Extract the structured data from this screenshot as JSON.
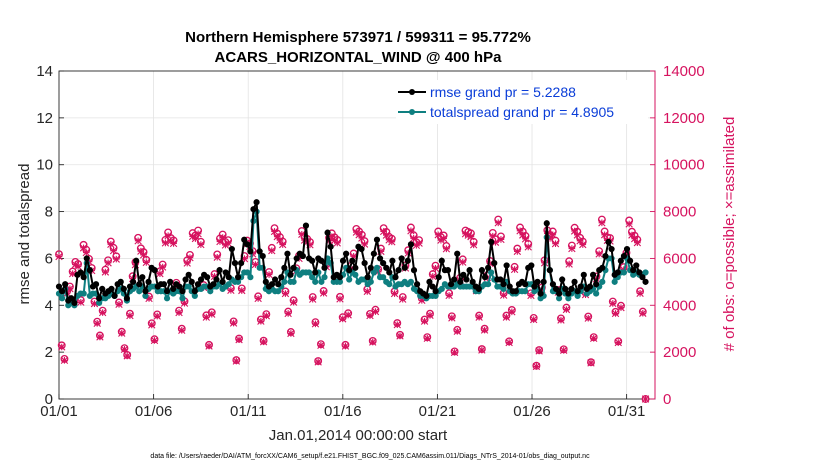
{
  "chart_data": {
    "type": "line",
    "title_line1": "Northern Hemisphere 573971 / 599311 = 95.772%",
    "title_line2": "ACARS_HORIZONTAL_WIND @ 400 hPa",
    "xlabel": "Jan.01,2014 00:00:00 start",
    "ylabel": "rmse and totalspread",
    "y2label": "# of obs: o=possible; ×=assimilated",
    "footnote": "data file: /Users/raeder/DAI/ATM_forcXX/CAM6_setup/f.e21.FHIST_BGC.f09_025.CAM6assim.011/Diags_NTrS_2014-01/obs_diag_output.nc",
    "xlim": [
      0,
      31.5
    ],
    "ylim": [
      0,
      14
    ],
    "y2lim": [
      0,
      14000
    ],
    "xticks": [
      0,
      5,
      10,
      15,
      20,
      25,
      30
    ],
    "xtick_labels": [
      "01/01",
      "01/06",
      "01/11",
      "01/16",
      "01/21",
      "01/26",
      "01/31"
    ],
    "yticks": [
      0,
      2,
      4,
      6,
      8,
      10,
      12,
      14
    ],
    "y2ticks": [
      0,
      2000,
      4000,
      6000,
      8000,
      10000,
      12000,
      14000
    ],
    "legend_position": "top-right",
    "series": [
      {
        "name": "rmse grand pr = 5.2288",
        "color": "#000000",
        "axis": "left",
        "values": [
          4.8,
          4.6,
          4.9,
          4.2,
          4.3,
          4.1,
          5.3,
          5.4,
          5.2,
          6.0,
          5.5,
          4.8,
          4.9,
          4.3,
          4.7,
          4.5,
          4.6,
          4.7,
          4.4,
          4.9,
          5.0,
          4.7,
          4.3,
          4.8,
          5.0,
          5.9,
          4.9,
          5.2,
          4.6,
          5.0,
          5.6,
          5.5,
          4.8,
          4.9,
          4.9,
          4.6,
          5.0,
          4.7,
          4.9,
          4.8,
          4.6,
          5.1,
          5.3,
          5.0,
          4.6,
          4.9,
          5.1,
          5.3,
          5.2,
          4.8,
          4.9,
          5.1,
          5.5,
          5.0,
          5.4,
          5.2,
          6.4,
          5.8,
          5.2,
          5.8,
          6.8,
          6.6,
          6.3,
          8.1,
          8.4,
          6.3,
          6.1,
          5.0,
          4.8,
          4.9,
          5.1,
          4.9,
          5.2,
          5.6,
          6.2,
          5.3,
          5.6,
          6.0,
          6.2,
          6.1,
          7.4,
          6.0,
          5.9,
          5.4,
          6.0,
          5.9,
          5.6,
          7.1,
          6.5,
          5.2,
          5.3,
          5.2,
          5.9,
          6.2,
          5.5,
          5.9,
          5.6,
          6.5,
          6.4,
          5.8,
          5.2,
          5.6,
          6.2,
          6.8,
          6.0,
          5.8,
          5.6,
          5.4,
          5.9,
          5.2,
          5.5,
          6.0,
          5.6,
          5.9,
          6.6,
          5.5,
          4.9,
          4.6,
          4.5,
          4.4,
          5.0,
          4.8,
          4.6,
          5.2,
          5.9,
          5.5,
          5.5,
          4.9,
          5.1,
          6.2,
          5.0,
          5.3,
          5.1,
          5.5,
          5.0,
          4.8,
          4.7,
          5.5,
          5.2,
          5.6,
          6.7,
          5.8,
          5.1,
          5.1,
          4.9,
          5.7,
          4.8,
          4.6,
          4.6,
          4.9,
          5.0,
          4.9,
          5.6,
          5.7,
          4.8,
          5.0,
          4.5,
          5.0,
          7.5,
          5.5,
          4.9,
          4.7,
          4.5,
          5.1,
          4.7,
          4.5,
          4.7,
          5.0,
          4.6,
          4.8,
          5.3,
          4.7,
          4.8,
          5.3,
          4.9,
          5.5,
          5.6,
          6.1,
          6.7,
          6.4,
          5.3,
          5.4,
          5.9,
          6.1,
          6.4,
          5.9,
          5.5,
          5.7,
          5.4,
          5.2,
          5.0
        ]
      },
      {
        "name": "totalspread grand pr = 4.8905",
        "color": "#0f7f80",
        "axis": "left",
        "values": [
          4.5,
          4.3,
          4.7,
          4.0,
          4.1,
          4.0,
          4.4,
          4.5,
          4.5,
          5.8,
          4.4,
          4.5,
          4.5,
          4.1,
          4.3,
          4.3,
          4.4,
          4.5,
          4.4,
          4.6,
          4.7,
          4.5,
          4.2,
          4.6,
          4.7,
          4.8,
          4.6,
          4.8,
          4.4,
          4.7,
          4.8,
          4.8,
          4.6,
          4.6,
          4.6,
          4.3,
          4.6,
          4.5,
          4.6,
          4.6,
          4.3,
          4.8,
          4.8,
          4.6,
          4.4,
          4.7,
          4.7,
          4.8,
          4.8,
          4.6,
          4.8,
          4.8,
          4.9,
          4.7,
          4.8,
          4.9,
          5.1,
          5.0,
          5.0,
          5.2,
          5.4,
          5.4,
          5.2,
          7.6,
          8.0,
          5.6,
          5.6,
          4.7,
          4.6,
          4.7,
          4.6,
          4.6,
          4.8,
          5.0,
          5.4,
          5.0,
          5.0,
          5.5,
          5.3,
          5.4,
          5.4,
          5.4,
          5.2,
          5.0,
          5.4,
          5.0,
          5.2,
          6.0,
          5.8,
          5.0,
          5.0,
          5.0,
          5.3,
          5.6,
          5.1,
          5.4,
          5.3,
          5.0,
          5.1,
          5.1,
          4.9,
          5.0,
          5.4,
          5.6,
          5.2,
          5.2,
          5.0,
          4.9,
          5.2,
          4.8,
          4.9,
          4.9,
          5.0,
          4.9,
          5.0,
          4.7,
          4.6,
          4.4,
          4.4,
          4.3,
          4.4,
          4.4,
          4.4,
          4.6,
          4.7,
          4.9,
          4.8,
          4.8,
          4.8,
          4.9,
          4.8,
          4.8,
          4.8,
          4.8,
          4.8,
          4.6,
          4.6,
          4.8,
          4.9,
          4.9,
          5.4,
          5.1,
          4.8,
          4.8,
          4.7,
          5.0,
          4.6,
          4.5,
          4.5,
          4.6,
          4.6,
          4.6,
          4.9,
          4.9,
          4.6,
          4.7,
          4.3,
          4.4,
          6.9,
          5.5,
          4.6,
          4.6,
          4.3,
          4.7,
          4.5,
          4.3,
          4.5,
          4.6,
          4.4,
          4.6,
          4.8,
          4.5,
          4.6,
          4.7,
          4.5,
          4.8,
          5.0,
          5.5,
          6.0,
          6.0,
          5.0,
          5.2,
          5.4,
          5.4,
          6.0,
          5.5,
          5.3,
          5.4,
          5.3,
          5.3,
          5.4
        ]
      }
    ],
    "obs_possible": [
      6180,
      2290,
      1710,
      4610,
      4800,
      5440,
      5850,
      5760,
      4220,
      6580,
      6370,
      5980,
      5590,
      4160,
      3300,
      2710,
      3770,
      5520,
      5920,
      6720,
      6450,
      6090,
      4120,
      2870,
      2170,
      1880,
      3640,
      5240,
      5840,
      6880,
      6430,
      6270,
      5940,
      4370,
      3230,
      2550,
      3610,
      5450,
      5740,
      6790,
      7110,
      6870,
      6770,
      4960,
      3770,
      3000,
      4170,
      5920,
      6150,
      7080,
      6980,
      7190,
      6710,
      4860,
      3570,
      2310,
      3700,
      5330,
      6170,
      6850,
      7020,
      6700,
      6780,
      4730,
      3310,
      1660,
      2580,
      4720,
      6100,
      6760,
      6640,
      6310,
      5850,
      4380,
      3390,
      2490,
      3620,
      5420,
      6450,
      7290,
      7060,
      6910,
      6720,
      4590,
      3730,
      2860,
      4210,
      5580,
      6120,
      7170,
      6910,
      6830,
      6700,
      4350,
      3280,
      1620,
      2340,
      4610,
      5750,
      6880,
      7070,
      6900,
      6790,
      4360,
      3490,
      2310,
      3660,
      5680,
      6210,
      7260,
      7150,
      7010,
      6740,
      4680,
      3630,
      2480,
      3810,
      5540,
      6420,
      7290,
      7130,
      6920,
      6840,
      4590,
      3240,
      2740,
      4350,
      5700,
      6350,
      7320,
      6990,
      6690,
      6780,
      4300,
      3390,
      2640,
      3640,
      5330,
      5690,
      7150,
      6910,
      6980,
      6530,
      4510,
      3530,
      2030,
      2950,
      5170,
      5960,
      7190,
      7130,
      7070,
      6710,
      4710,
      3560,
      2130,
      3000,
      5280,
      5890,
      7090,
      6820,
      7660,
      6940,
      4520,
      3560,
      2460,
      3800,
      5640,
      6420,
      7320,
      7140,
      6960,
      6620,
      4510,
      3460,
      1420,
      2090,
      4760,
      5920,
      7200,
      7000,
      7150,
      6760,
      4650,
      3440,
      2120,
      3900,
      5880,
      6550,
      7310,
      7140,
      6880,
      6720,
      4540,
      3520,
      1570,
      2640,
      5230,
      6310,
      7660,
      7150,
      6900,
      6870,
      4160,
      3720,
      2460,
      3980,
      5630,
      6240,
      7620,
      7140,
      6970,
      6800,
      4600,
      3730,
      0
    ],
    "obs_assimilated": [
      6080,
      2220,
      1650,
      4520,
      4710,
      5350,
      5740,
      5660,
      4130,
      6450,
      6250,
      5860,
      5480,
      4070,
      3230,
      2650,
      3690,
      5420,
      5810,
      6600,
      6330,
      5970,
      4040,
      2810,
      2120,
      1840,
      3560,
      5140,
      5730,
      6750,
      6310,
      6150,
      5830,
      4290,
      3160,
      2500,
      3540,
      5350,
      5630,
      6660,
      6970,
      6740,
      6640,
      4860,
      3690,
      2930,
      4090,
      5800,
      6030,
      6940,
      6850,
      7050,
      6590,
      4760,
      3490,
      2260,
      3620,
      5230,
      6050,
      6720,
      6890,
      6570,
      6650,
      4640,
      3240,
      1620,
      2530,
      4630,
      5990,
      6630,
      6510,
      6190,
      5740,
      4290,
      3320,
      2440,
      3550,
      5310,
      6330,
      7150,
      6930,
      6780,
      6590,
      4500,
      3650,
      2800,
      4130,
      5470,
      6000,
      7030,
      6780,
      6700,
      6580,
      4260,
      3210,
      1580,
      2290,
      4520,
      5640,
      6750,
      6930,
      6770,
      6660,
      4270,
      3420,
      2260,
      3590,
      5570,
      6090,
      7120,
      7010,
      6870,
      6610,
      4590,
      3560,
      2430,
      3730,
      5430,
      6300,
      7150,
      6990,
      6790,
      6710,
      4500,
      3170,
      2690,
      4260,
      5590,
      6230,
      7180,
      6860,
      6560,
      6650,
      4210,
      3320,
      2590,
      3570,
      5230,
      5580,
      7010,
      6780,
      6850,
      6410,
      4420,
      3460,
      1990,
      2890,
      5070,
      5840,
      7050,
      6990,
      6930,
      6580,
      4620,
      3490,
      2090,
      2940,
      5180,
      5780,
      6950,
      6690,
      7520,
      6810,
      4430,
      3490,
      2410,
      3720,
      5530,
      6300,
      7180,
      7000,
      6830,
      6490,
      4420,
      3390,
      1390,
      2050,
      4670,
      5810,
      7060,
      6860,
      7010,
      6630,
      4560,
      3370,
      2080,
      3820,
      5760,
      6420,
      7170,
      7000,
      6750,
      6590,
      4450,
      3450,
      1540,
      2590,
      5130,
      6190,
      7520,
      7010,
      6770,
      6740,
      4080,
      3650,
      2410,
      3900,
      5520,
      6120,
      7470,
      7000,
      6840,
      6670,
      4510,
      3660,
      0
    ]
  }
}
